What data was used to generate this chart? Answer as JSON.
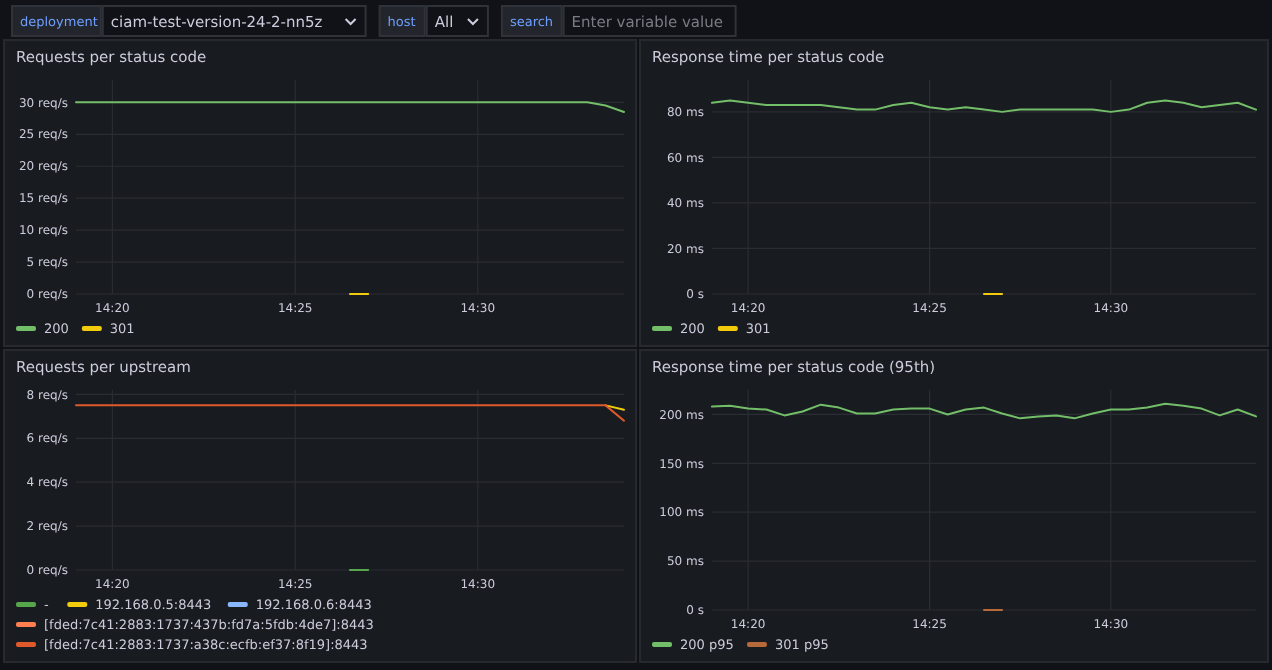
{
  "chart_data": [
    {
      "type": "other",
      "annotations": [
        "deployment",
        "ciam-test-version-24-2-nn5z",
        "host",
        "All",
        "search",
        "Enter variable value"
      ]
    },
    {
      "type": "line",
      "title": "Requests per status code",
      "grid": true,
      "legend": "bottom",
      "xlim": [
        14.3167,
        14.5667
      ],
      "xticks": [
        {
          "value": 14.3333,
          "label": "14:20"
        },
        {
          "value": 14.4167,
          "label": "14:25"
        },
        {
          "value": 14.5,
          "label": "14:30"
        }
      ],
      "ylim": [
        0,
        33.5
      ],
      "yticks": [
        {
          "value": 0,
          "label": "0 req/s"
        },
        {
          "value": 5,
          "label": "5 req/s"
        },
        {
          "value": 10,
          "label": "10 req/s"
        },
        {
          "value": 15,
          "label": "15 req/s"
        },
        {
          "value": 20,
          "label": "20 req/s"
        },
        {
          "value": 25,
          "label": "25 req/s"
        },
        {
          "value": 30,
          "label": "30 req/s"
        }
      ],
      "x": [
        14.3167,
        14.325,
        14.3333,
        14.3417,
        14.35,
        14.3583,
        14.3667,
        14.375,
        14.3833,
        14.3917,
        14.4,
        14.4083,
        14.4167,
        14.425,
        14.4333,
        14.4417,
        14.45,
        14.4583,
        14.4667,
        14.475,
        14.4833,
        14.4917,
        14.5,
        14.5083,
        14.5167,
        14.525,
        14.5333,
        14.5417,
        14.55,
        14.5583,
        14.5667
      ],
      "series": [
        {
          "name": "200",
          "color": "#73bf69",
          "values": [
            30,
            30,
            30,
            30,
            30,
            30,
            30,
            30,
            30,
            30,
            30,
            30,
            30,
            30,
            30,
            30,
            30,
            30,
            30,
            30,
            30,
            30,
            30,
            30,
            30,
            30,
            30,
            30,
            30,
            29.5,
            28.5
          ]
        },
        {
          "name": "301",
          "color": "#f2cc0c",
          "values": [
            null,
            null,
            null,
            null,
            null,
            null,
            null,
            null,
            null,
            null,
            null,
            null,
            null,
            null,
            null,
            0,
            0,
            null,
            null,
            null,
            null,
            null,
            null,
            null,
            null,
            null,
            null,
            null,
            null,
            null,
            null
          ]
        }
      ]
    },
    {
      "type": "line",
      "title": "Response time per status code",
      "grid": true,
      "legend": "bottom",
      "xlim": [
        14.3167,
        14.5667
      ],
      "xticks": [
        {
          "value": 14.3333,
          "label": "14:20"
        },
        {
          "value": 14.4167,
          "label": "14:25"
        },
        {
          "value": 14.5,
          "label": "14:30"
        }
      ],
      "ylim": [
        0,
        94
      ],
      "yticks": [
        {
          "value": 0,
          "label": "0 s"
        },
        {
          "value": 20,
          "label": "20 ms"
        },
        {
          "value": 40,
          "label": "40 ms"
        },
        {
          "value": 60,
          "label": "60 ms"
        },
        {
          "value": 80,
          "label": "80 ms"
        }
      ],
      "x": [
        14.3167,
        14.325,
        14.3333,
        14.3417,
        14.35,
        14.3583,
        14.3667,
        14.375,
        14.3833,
        14.3917,
        14.4,
        14.4083,
        14.4167,
        14.425,
        14.4333,
        14.4417,
        14.45,
        14.4583,
        14.4667,
        14.475,
        14.4833,
        14.4917,
        14.5,
        14.5083,
        14.5167,
        14.525,
        14.5333,
        14.5417,
        14.55,
        14.5583,
        14.5667
      ],
      "series": [
        {
          "name": "200",
          "color": "#73bf69",
          "values": [
            84,
            85,
            84,
            83,
            83,
            83,
            83,
            82,
            81,
            81,
            83,
            84,
            82,
            81,
            82,
            81,
            80,
            81,
            81,
            81,
            81,
            81,
            80,
            81,
            84,
            85,
            84,
            82,
            83,
            84,
            81
          ]
        },
        {
          "name": "301",
          "color": "#f2cc0c",
          "values": [
            null,
            null,
            null,
            null,
            null,
            null,
            null,
            null,
            null,
            null,
            null,
            null,
            null,
            null,
            null,
            0,
            0,
            null,
            null,
            null,
            null,
            null,
            null,
            null,
            null,
            null,
            null,
            null,
            null,
            null,
            null
          ]
        }
      ]
    },
    {
      "type": "line",
      "title": "Requests per upstream",
      "grid": true,
      "legend": "bottom",
      "xlim": [
        14.3167,
        14.5667
      ],
      "xticks": [
        {
          "value": 14.3333,
          "label": "14:20"
        },
        {
          "value": 14.4167,
          "label": "14:25"
        },
        {
          "value": 14.5,
          "label": "14:30"
        }
      ],
      "ylim": [
        0,
        8.2
      ],
      "yticks": [
        {
          "value": 0,
          "label": "0 req/s"
        },
        {
          "value": 2,
          "label": "2 req/s"
        },
        {
          "value": 4,
          "label": "4 req/s"
        },
        {
          "value": 6,
          "label": "6 req/s"
        },
        {
          "value": 8,
          "label": "8 req/s"
        }
      ],
      "x": [
        14.3167,
        14.325,
        14.3333,
        14.3417,
        14.35,
        14.3583,
        14.3667,
        14.375,
        14.3833,
        14.3917,
        14.4,
        14.4083,
        14.4167,
        14.425,
        14.4333,
        14.4417,
        14.45,
        14.4583,
        14.4667,
        14.475,
        14.4833,
        14.4917,
        14.5,
        14.5083,
        14.5167,
        14.525,
        14.5333,
        14.5417,
        14.55,
        14.5583,
        14.5667
      ],
      "series": [
        {
          "name": "-",
          "color": "#56a64b",
          "values": [
            null,
            null,
            null,
            null,
            null,
            null,
            null,
            null,
            null,
            null,
            null,
            null,
            null,
            null,
            null,
            0,
            0,
            null,
            null,
            null,
            null,
            null,
            null,
            null,
            null,
            null,
            null,
            null,
            null,
            null,
            null
          ]
        },
        {
          "name": "192.168.0.5:8443",
          "color": "#f2cc0c",
          "values": [
            null,
            null,
            null,
            null,
            null,
            null,
            null,
            null,
            null,
            null,
            null,
            null,
            null,
            null,
            null,
            null,
            null,
            null,
            null,
            null,
            null,
            null,
            null,
            null,
            null,
            null,
            null,
            null,
            null,
            7.5,
            7.3
          ]
        },
        {
          "name": "192.168.0.6:8443",
          "color": "#8ab8ff",
          "values": [
            null,
            null,
            null,
            null,
            null,
            null,
            null,
            null,
            null,
            null,
            null,
            null,
            null,
            null,
            null,
            null,
            null,
            null,
            null,
            null,
            null,
            null,
            null,
            null,
            null,
            null,
            null,
            null,
            null,
            null,
            null
          ]
        },
        {
          "name": "[fded:7c41:2883:1737:437b:fd7a:5fdb:4de7]:8443",
          "color": "#ff7f50",
          "values": [
            null,
            null,
            null,
            null,
            null,
            null,
            null,
            null,
            null,
            null,
            null,
            null,
            null,
            null,
            null,
            null,
            null,
            null,
            null,
            null,
            null,
            null,
            null,
            null,
            null,
            null,
            null,
            null,
            null,
            null,
            null
          ]
        },
        {
          "name": "[fded:7c41:2883:1737:a38c:ecfb:ef37:8f19]:8443",
          "color": "#e0592b",
          "values": [
            7.5,
            7.5,
            7.5,
            7.5,
            7.5,
            7.5,
            7.5,
            7.5,
            7.5,
            7.5,
            7.5,
            7.5,
            7.5,
            7.5,
            7.5,
            7.5,
            7.5,
            7.5,
            7.5,
            7.5,
            7.5,
            7.5,
            7.5,
            7.5,
            7.5,
            7.5,
            7.5,
            7.5,
            7.5,
            7.5,
            6.8
          ]
        }
      ]
    },
    {
      "type": "line",
      "title": "Response time per status code (95th)",
      "grid": true,
      "legend": "bottom",
      "xlim": [
        14.3167,
        14.5667
      ],
      "xticks": [
        {
          "value": 14.3333,
          "label": "14:20"
        },
        {
          "value": 14.4167,
          "label": "14:25"
        },
        {
          "value": 14.5,
          "label": "14:30"
        }
      ],
      "ylim": [
        0,
        225
      ],
      "yticks": [
        {
          "value": 0,
          "label": "0 s"
        },
        {
          "value": 50,
          "label": "50 ms"
        },
        {
          "value": 100,
          "label": "100 ms"
        },
        {
          "value": 150,
          "label": "150 ms"
        },
        {
          "value": 200,
          "label": "200 ms"
        }
      ],
      "x": [
        14.3167,
        14.325,
        14.3333,
        14.3417,
        14.35,
        14.3583,
        14.3667,
        14.375,
        14.3833,
        14.3917,
        14.4,
        14.4083,
        14.4167,
        14.425,
        14.4333,
        14.4417,
        14.45,
        14.4583,
        14.4667,
        14.475,
        14.4833,
        14.4917,
        14.5,
        14.5083,
        14.5167,
        14.525,
        14.5333,
        14.5417,
        14.55,
        14.5583,
        14.5667
      ],
      "series": [
        {
          "name": "200 p95",
          "color": "#73bf69",
          "values": [
            208,
            209,
            206,
            205,
            199,
            203,
            210,
            207,
            201,
            201,
            205,
            206,
            206,
            200,
            205,
            207,
            201,
            196,
            198,
            199,
            196,
            201,
            205,
            205,
            207,
            211,
            209,
            206,
            199,
            205,
            198
          ]
        },
        {
          "name": "301 p95",
          "color": "#b8693a",
          "values": [
            null,
            null,
            null,
            null,
            null,
            null,
            null,
            null,
            null,
            null,
            null,
            null,
            null,
            null,
            null,
            0,
            0,
            null,
            null,
            null,
            null,
            null,
            null,
            null,
            null,
            null,
            null,
            null,
            null,
            null,
            null
          ]
        }
      ]
    }
  ]
}
